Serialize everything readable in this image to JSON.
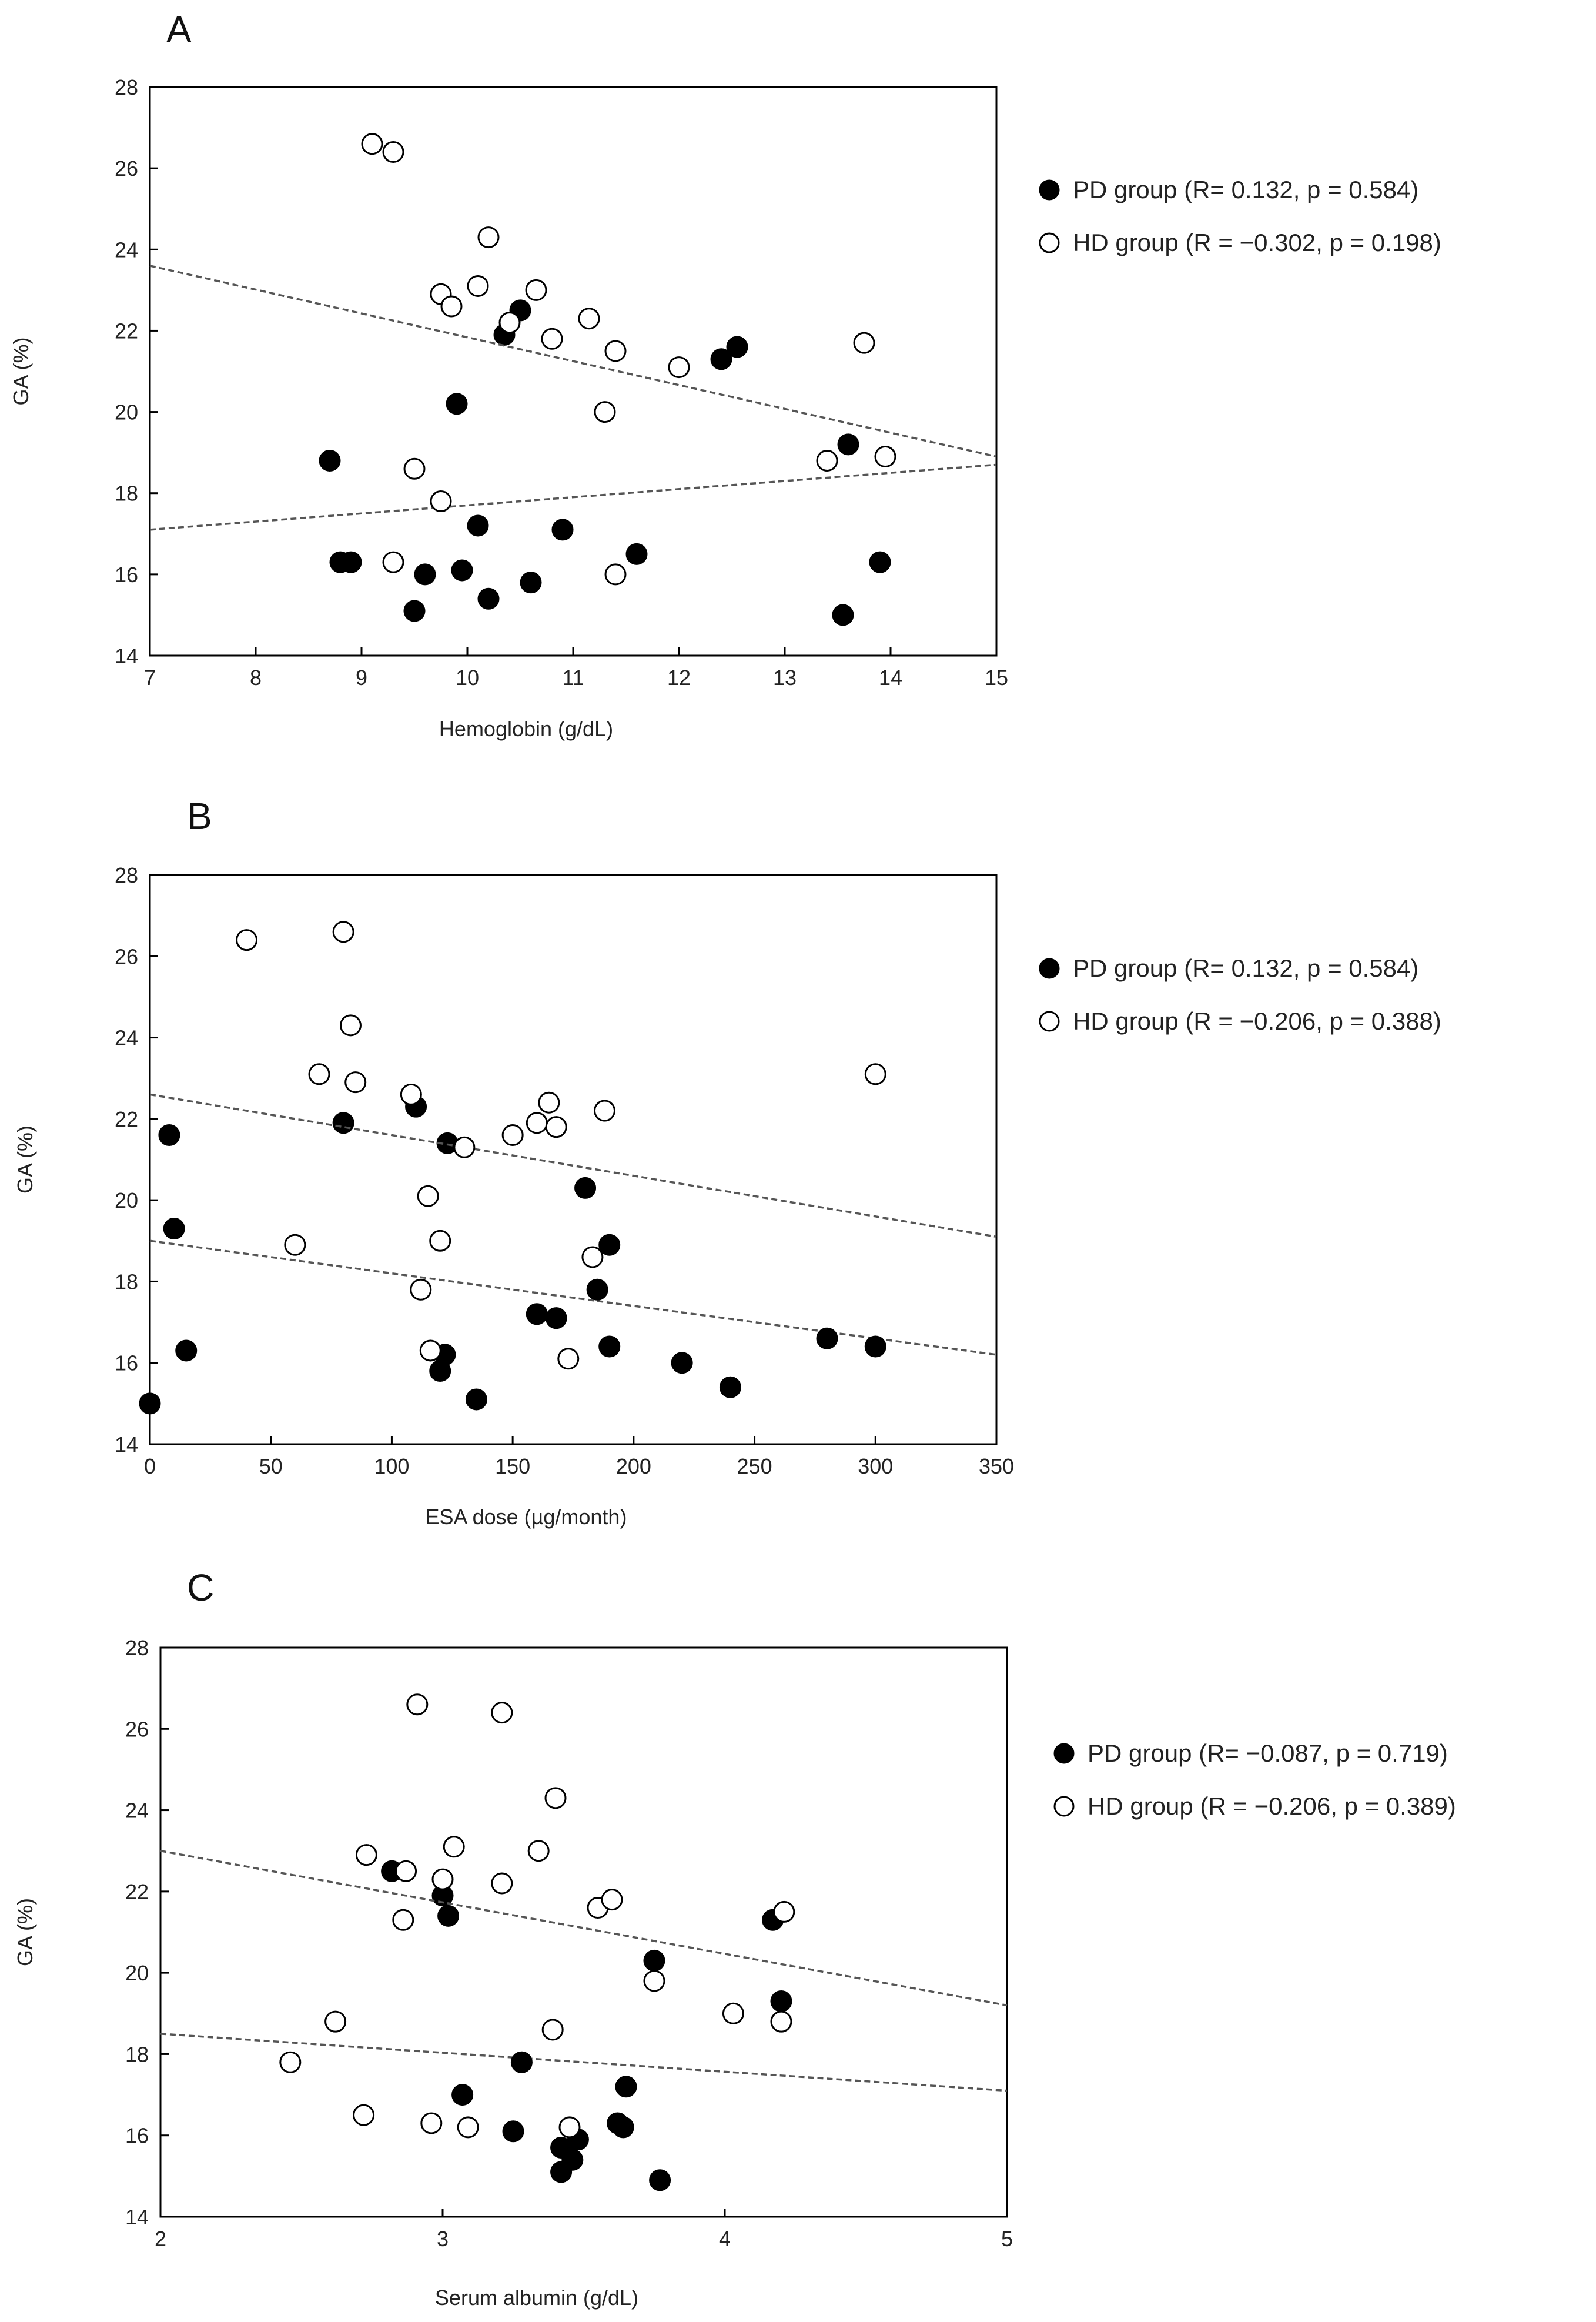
{
  "chart_data": [
    {
      "type": "scatter",
      "panel_label": "A",
      "title": "",
      "xlabel": "Hemoglobin (g/dL)",
      "ylabel": "GA (%)",
      "xlim": [
        7,
        15
      ],
      "ylim": [
        14,
        28
      ],
      "xticks": [
        "7",
        "8",
        "9",
        "10",
        "11",
        "12",
        "13",
        "14",
        "15"
      ],
      "yticks": [
        "14",
        "16",
        "18",
        "20",
        "22",
        "24",
        "26",
        "28"
      ],
      "legend_position": "right",
      "series": [
        {
          "name": "PD group",
          "stat_label": "(R= 0.132, p = 0.584)",
          "marker": "filled-circle",
          "points": [
            [
              8.7,
              18.8
            ],
            [
              8.8,
              16.3
            ],
            [
              8.9,
              16.3
            ],
            [
              9.5,
              15.1
            ],
            [
              9.6,
              16.0
            ],
            [
              9.9,
              20.2
            ],
            [
              9.95,
              16.1
            ],
            [
              10.1,
              17.2
            ],
            [
              10.2,
              15.4
            ],
            [
              10.35,
              21.9
            ],
            [
              10.5,
              22.5
            ],
            [
              10.6,
              15.8
            ],
            [
              10.9,
              17.1
            ],
            [
              11.6,
              16.5
            ],
            [
              12.4,
              21.3
            ],
            [
              12.55,
              21.6
            ],
            [
              13.55,
              15.0
            ],
            [
              13.6,
              19.2
            ],
            [
              13.9,
              16.3
            ]
          ],
          "trend": [
            [
              7,
              17.1
            ],
            [
              15,
              18.7
            ]
          ]
        },
        {
          "name": "HD group",
          "stat_label": "(R = −0.302, p = 0.198)",
          "marker": "open-circle",
          "points": [
            [
              9.1,
              26.6
            ],
            [
              9.3,
              26.4
            ],
            [
              9.3,
              16.3
            ],
            [
              9.5,
              18.6
            ],
            [
              9.75,
              17.8
            ],
            [
              9.75,
              22.9
            ],
            [
              9.85,
              22.6
            ],
            [
              10.1,
              23.1
            ],
            [
              10.2,
              24.3
            ],
            [
              10.4,
              22.2
            ],
            [
              10.65,
              23.0
            ],
            [
              10.8,
              21.8
            ],
            [
              11.15,
              22.3
            ],
            [
              11.3,
              20.0
            ],
            [
              11.4,
              21.5
            ],
            [
              11.4,
              16.0
            ],
            [
              12.0,
              21.1
            ],
            [
              13.4,
              18.8
            ],
            [
              13.75,
              21.7
            ],
            [
              13.95,
              18.9
            ]
          ],
          "trend": [
            [
              7,
              23.6
            ],
            [
              15,
              18.9
            ]
          ]
        }
      ]
    },
    {
      "type": "scatter",
      "panel_label": "B",
      "title": "",
      "xlabel": "ESA dose (µg/month)",
      "ylabel": "GA (%)",
      "xlim": [
        0,
        350
      ],
      "ylim": [
        14,
        28
      ],
      "xticks": [
        "0",
        "50",
        "100",
        "150",
        "200",
        "250",
        "300",
        "350"
      ],
      "yticks": [
        "14",
        "16",
        "18",
        "20",
        "22",
        "24",
        "26",
        "28"
      ],
      "legend_position": "right",
      "series": [
        {
          "name": "PD group",
          "stat_label": "(R= 0.132, p = 0.584)",
          "marker": "filled-circle",
          "points": [
            [
              0,
              15.0
            ],
            [
              8,
              21.6
            ],
            [
              10,
              19.3
            ],
            [
              15,
              16.3
            ],
            [
              80,
              21.9
            ],
            [
              110,
              22.3
            ],
            [
              120,
              15.8
            ],
            [
              122,
              16.2
            ],
            [
              123,
              21.4
            ],
            [
              135,
              15.1
            ],
            [
              160,
              17.2
            ],
            [
              168,
              17.1
            ],
            [
              180,
              20.3
            ],
            [
              185,
              17.8
            ],
            [
              190,
              18.9
            ],
            [
              190,
              16.4
            ],
            [
              220,
              16.0
            ],
            [
              240,
              15.4
            ],
            [
              280,
              16.6
            ],
            [
              300,
              16.4
            ]
          ],
          "trend": [
            [
              0,
              19.0
            ],
            [
              350,
              16.2
            ]
          ]
        },
        {
          "name": "HD group",
          "stat_label": "(R = −0.206, p = 0.388)",
          "marker": "open-circle",
          "points": [
            [
              40,
              26.4
            ],
            [
              60,
              18.9
            ],
            [
              70,
              23.1
            ],
            [
              80,
              26.6
            ],
            [
              83,
              24.3
            ],
            [
              85,
              22.9
            ],
            [
              108,
              22.6
            ],
            [
              112,
              17.8
            ],
            [
              115,
              20.1
            ],
            [
              116,
              16.3
            ],
            [
              120,
              19.0
            ],
            [
              130,
              21.3
            ],
            [
              150,
              21.6
            ],
            [
              160,
              21.9
            ],
            [
              165,
              22.4
            ],
            [
              168,
              21.8
            ],
            [
              173,
              16.1
            ],
            [
              183,
              18.6
            ],
            [
              188,
              22.2
            ],
            [
              300,
              23.1
            ]
          ],
          "trend": [
            [
              0,
              22.6
            ],
            [
              350,
              19.1
            ]
          ]
        }
      ]
    },
    {
      "type": "scatter",
      "panel_label": "C",
      "title": "",
      "xlabel": "Serum albumin (g/dL)",
      "ylabel": "GA (%)",
      "xlim": [
        2,
        5
      ],
      "ylim": [
        14,
        28
      ],
      "xticks": [
        "2",
        "3",
        "4",
        "5"
      ],
      "yticks": [
        "14",
        "16",
        "18",
        "20",
        "22",
        "24",
        "26",
        "28"
      ],
      "legend_position": "right",
      "series": [
        {
          "name": "PD group",
          "stat_label": "(R= −0.087, p = 0.719)",
          "marker": "filled-circle",
          "points": [
            [
              2.82,
              22.5
            ],
            [
              3.0,
              21.9
            ],
            [
              3.02,
              21.4
            ],
            [
              3.07,
              17.0
            ],
            [
              3.25,
              16.1
            ],
            [
              3.28,
              17.8
            ],
            [
              3.42,
              15.7
            ],
            [
              3.42,
              15.1
            ],
            [
              3.46,
              15.4
            ],
            [
              3.48,
              15.9
            ],
            [
              3.62,
              16.3
            ],
            [
              3.64,
              16.2
            ],
            [
              3.65,
              17.2
            ],
            [
              3.75,
              20.3
            ],
            [
              3.77,
              14.9
            ],
            [
              4.17,
              21.3
            ],
            [
              4.2,
              19.3
            ]
          ],
          "trend": [
            [
              2,
              18.5
            ],
            [
              5,
              17.1
            ]
          ]
        },
        {
          "name": "HD group",
          "stat_label": "(R = −0.206, p = 0.389)",
          "marker": "open-circle",
          "points": [
            [
              2.46,
              17.8
            ],
            [
              2.62,
              18.8
            ],
            [
              2.72,
              16.5
            ],
            [
              2.73,
              22.9
            ],
            [
              2.86,
              21.3
            ],
            [
              2.87,
              22.5
            ],
            [
              2.91,
              26.6
            ],
            [
              2.96,
              16.3
            ],
            [
              3.0,
              22.3
            ],
            [
              3.04,
              23.1
            ],
            [
              3.09,
              16.2
            ],
            [
              3.21,
              22.2
            ],
            [
              3.21,
              26.4
            ],
            [
              3.34,
              23.0
            ],
            [
              3.39,
              18.6
            ],
            [
              3.4,
              24.3
            ],
            [
              3.45,
              16.2
            ],
            [
              3.55,
              21.6
            ],
            [
              3.6,
              21.8
            ],
            [
              3.75,
              19.8
            ],
            [
              4.03,
              19.0
            ],
            [
              4.2,
              18.8
            ],
            [
              4.21,
              21.5
            ]
          ],
          "trend": [
            [
              2,
              23.0
            ],
            [
              5,
              19.2
            ]
          ]
        }
      ]
    }
  ]
}
